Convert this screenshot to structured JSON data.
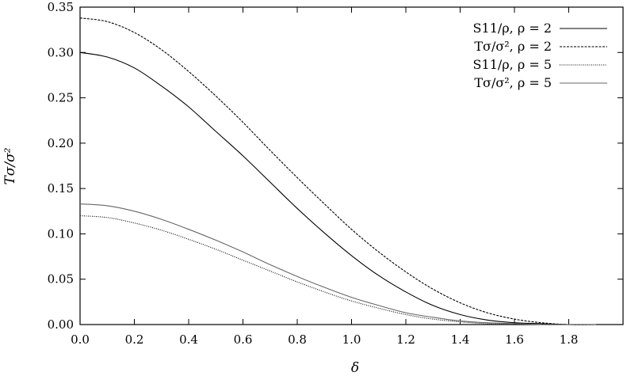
{
  "chart_data": {
    "type": "line",
    "xlabel": "δ",
    "ylabel": "Tσ/σ²",
    "xlim": [
      0,
      2
    ],
    "ylim": [
      0,
      0.35
    ],
    "xticks": [
      "0.0",
      "0.2",
      "0.4",
      "0.6",
      "0.8",
      "1.0",
      "1.2",
      "1.4",
      "1.6",
      "1.8"
    ],
    "xtick_values": [
      0,
      0.2,
      0.4,
      0.6,
      0.8,
      1.0,
      1.2,
      1.4,
      1.6,
      1.8
    ],
    "yticks": [
      "0.00",
      "0.05",
      "0.10",
      "0.15",
      "0.20",
      "0.25",
      "0.30",
      "0.35"
    ],
    "ytick_values": [
      0,
      0.05,
      0.1,
      0.15,
      0.2,
      0.25,
      0.3,
      0.35
    ],
    "grid": false,
    "legend_position": "top-right",
    "x": [
      0.0,
      0.1,
      0.2,
      0.3,
      0.4,
      0.5,
      0.6,
      0.7,
      0.8,
      0.9,
      1.0,
      1.1,
      1.2,
      1.3,
      1.4,
      1.5,
      1.6,
      1.7,
      1.8,
      1.9
    ],
    "series": [
      {
        "name": "S11/ρ, ρ = 2",
        "color": "#000000",
        "dash": "",
        "values": [
          0.3,
          0.295,
          0.283,
          0.263,
          0.24,
          0.213,
          0.186,
          0.157,
          0.128,
          0.101,
          0.076,
          0.054,
          0.036,
          0.021,
          0.011,
          0.005,
          0.002,
          0.001,
          0.0,
          0.0
        ]
      },
      {
        "name": "Tσ/σ², ρ = 2",
        "color": "#000000",
        "dash": "3,1.5",
        "values": [
          0.338,
          0.334,
          0.322,
          0.303,
          0.279,
          0.252,
          0.223,
          0.192,
          0.162,
          0.133,
          0.105,
          0.08,
          0.058,
          0.039,
          0.024,
          0.013,
          0.006,
          0.002,
          0.0,
          0.0
        ]
      },
      {
        "name": "S11/ρ, ρ = 5",
        "color": "#000000",
        "dash": "1,1.5",
        "values": [
          0.12,
          0.118,
          0.112,
          0.104,
          0.094,
          0.083,
          0.071,
          0.059,
          0.047,
          0.036,
          0.026,
          0.018,
          0.011,
          0.006,
          0.003,
          0.001,
          0.0,
          0.0,
          0.0,
          0.0
        ]
      },
      {
        "name": "Tσ/σ², ρ = 5",
        "color": "#666666",
        "dash": "",
        "values": [
          0.133,
          0.131,
          0.125,
          0.116,
          0.105,
          0.093,
          0.08,
          0.066,
          0.053,
          0.041,
          0.03,
          0.021,
          0.013,
          0.008,
          0.004,
          0.002,
          0.001,
          0.0,
          0.0,
          0.0
        ]
      }
    ]
  }
}
